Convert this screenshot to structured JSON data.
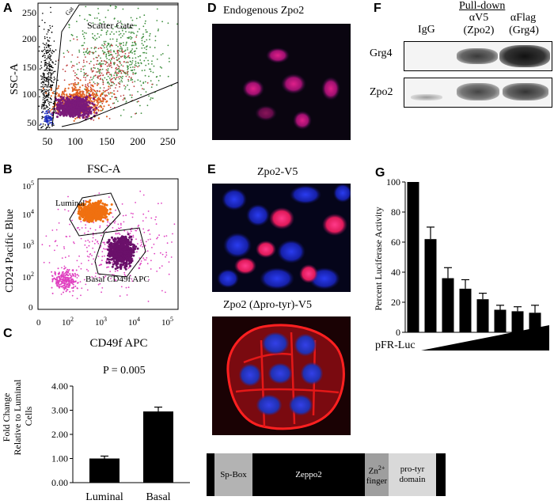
{
  "panel_letters": {
    "a": "A",
    "b": "B",
    "c": "C",
    "d": "D",
    "e": "E",
    "f": "F",
    "g": "G"
  },
  "panel_a": {
    "ylabel": "SSC-A",
    "gate_label": "Scatter Gate",
    "gate_small": "Gat",
    "yticks": [
      "250",
      "200",
      "150",
      "100",
      "50"
    ],
    "xticks": [
      "50",
      "100",
      "150",
      "200",
      "250"
    ]
  },
  "panel_b": {
    "title": "FSC-A",
    "ylabel": "CD24 Pacific Blue",
    "luminal_label": "Luminal",
    "basal_label": "Basal CD49f APC",
    "yticks": [
      "10",
      "10",
      "10",
      "10",
      "0"
    ],
    "yexp": [
      "5",
      "4",
      "3",
      "2",
      ""
    ],
    "xticks": [
      "0",
      "10",
      "10",
      "10",
      "10"
    ],
    "xexp": [
      "",
      "2",
      "3",
      "4",
      "5"
    ]
  },
  "panel_c": {
    "title": "CD49f APC",
    "ylabel_lines": [
      "Fold Change",
      "Relative to Luminal",
      "Cells"
    ],
    "pvalue": "P = 0.005",
    "yticks": [
      "4.00",
      "3.00",
      "2.00",
      "1.00",
      "0.00"
    ]
  },
  "panel_d": {
    "title": "Endogenous Zpo2"
  },
  "panel_e": {
    "title_top": "Zpo2-V5",
    "title_bottom": "Zpo2 (Δpro-tyr)-V5"
  },
  "panel_f": {
    "pulldown_label": "Pull-down",
    "lanes": [
      {
        "line1": "IgG",
        "line2": ""
      },
      {
        "line1": "αV5",
        "line2": "(Zpo2)"
      },
      {
        "line1": "αFlag",
        "line2": "(Grg4)"
      }
    ],
    "row_labels": [
      "Grg4",
      "Zpo2"
    ]
  },
  "panel_g": {
    "ylabel": "Percent Luciferase Activity",
    "yticks": [
      "100",
      "80",
      "60",
      "40",
      "20",
      "0"
    ],
    "xlabel": "pFR-Luc"
  },
  "domains": [
    {
      "line1": "Sp-Box",
      "line2": ""
    },
    {
      "line1": "Zeppo2",
      "line2": ""
    },
    {
      "line1": "Zn",
      "sup": "2+",
      "line2": "finger"
    },
    {
      "line1": "pro-tyr",
      "line2": "domain"
    }
  ],
  "chart_data": [
    {
      "type": "bar",
      "categories": [
        "Luminal",
        "Basal"
      ],
      "values": [
        1.0,
        2.95
      ],
      "errors": [
        0.1,
        0.18
      ],
      "title": "CD49f APC",
      "ylabel": "Fold Change Relative to Luminal Cells",
      "ylim": [
        0,
        4
      ],
      "annotation": "P = 0.005",
      "grid": false
    },
    {
      "type": "bar",
      "categories": [
        "",
        "",
        "",
        "",
        "",
        "",
        "",
        "",
        ""
      ],
      "values": [
        100,
        62,
        36,
        29,
        22,
        15,
        14,
        13,
        0
      ],
      "errors": [
        0,
        8,
        7,
        6,
        4,
        3,
        3,
        5,
        0
      ],
      "ylabel": "Percent Luciferase Activity",
      "xlabel": "pFR-Luc",
      "ylim": [
        0,
        100
      ],
      "grid": false
    }
  ]
}
